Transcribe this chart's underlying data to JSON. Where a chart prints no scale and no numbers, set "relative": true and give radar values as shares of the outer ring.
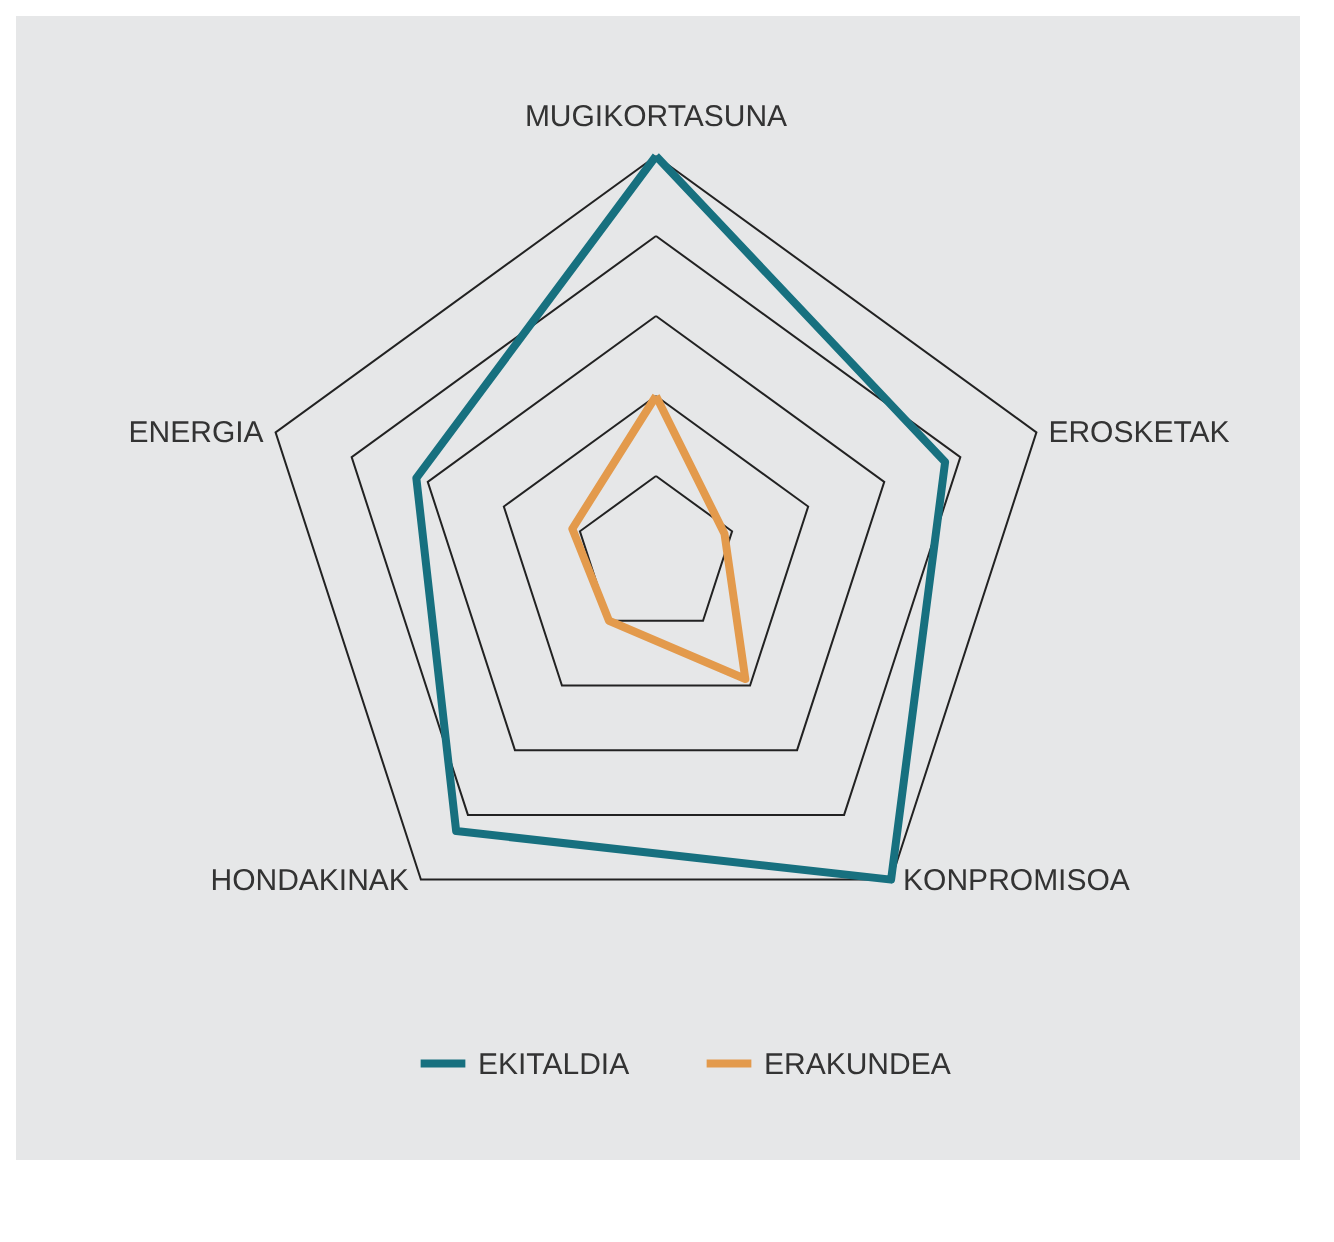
{
  "chart_data": {
    "type": "radar",
    "relative": true,
    "grid": true,
    "legend": "bottom",
    "categories": [
      "MUGIKORTASUNA",
      "EROSKETAK",
      "KONPROMISOA",
      "HONDAKINAK",
      "ENERGIA"
    ],
    "series": [
      {
        "name": "EKITALDIA",
        "color": "#17707f",
        "values": [
          1.0,
          0.76,
          1.0,
          0.85,
          0.63
        ]
      },
      {
        "name": "ERAKUNDEA",
        "color": "#e39a4c",
        "values": [
          0.4,
          0.18,
          0.38,
          0.2,
          0.22
        ]
      }
    ]
  }
}
